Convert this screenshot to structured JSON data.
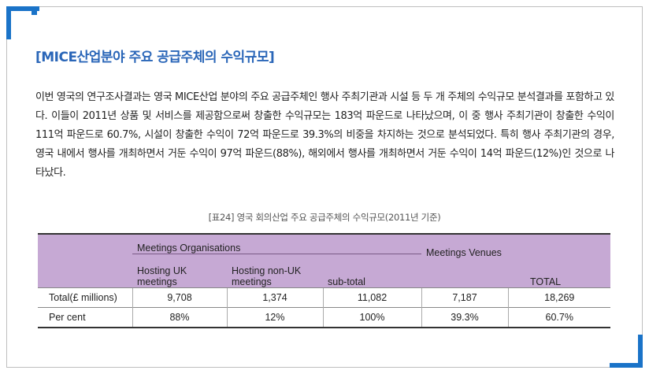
{
  "heading": "[MICE산업분야 주요 공급주체의 수익규모]",
  "paragraph": "이번 영국의 연구조사결과는 영국 MICE산업 분야의 주요 공급주체인 행사 주최기관과 시설 등 두 개 주체의 수익규모 분석결과를 포함하고 있다. 이들이 2011년 상품 및 서비스를 제공함으로써 창출한 수익규모는 183억 파운드로 나타났으며, 이 중 행사 주최기관이 창출한 수익이 111억 파운드로 60.7%, 시설이 창출한 수익이 72억 파운드로 39.3%의 비중을 차지하는 것으로 분석되었다. 특히 행사 주최기관의 경우, 영국 내에서 행사를 개최하면서 거둔 수익이 97억 파운드(88%), 해외에서 행사를 개최하면서 거둔 수익이 14억 파운드(12%)인 것으로 나타났다.",
  "caption": "[표24] 영국 회의산업 주요 공급주체의 수익규모(2011년 기준)",
  "table": {
    "group_org": "Meetings Organisations",
    "group_venues": "Meetings Venues",
    "col_hosting_uk": "Hosting UK meetings",
    "col_hosting_non_uk": "Hosting non-UK meetings",
    "col_subtotal": "sub-total",
    "col_total": "TOTAL",
    "rows": [
      {
        "label": "Total(£ millions)",
        "uk": "9,708",
        "non_uk": "1,374",
        "subtotal": "11,082",
        "venues": "7,187",
        "total": "18,269"
      },
      {
        "label": "Per cent",
        "uk": "88%",
        "non_uk": "12%",
        "subtotal": "100%",
        "venues": "39.3%",
        "total": "60.7%"
      }
    ]
  },
  "colors": {
    "accent": "#1a73c8",
    "heading": "#2a66b8",
    "table_header": "#c6a9d4"
  }
}
